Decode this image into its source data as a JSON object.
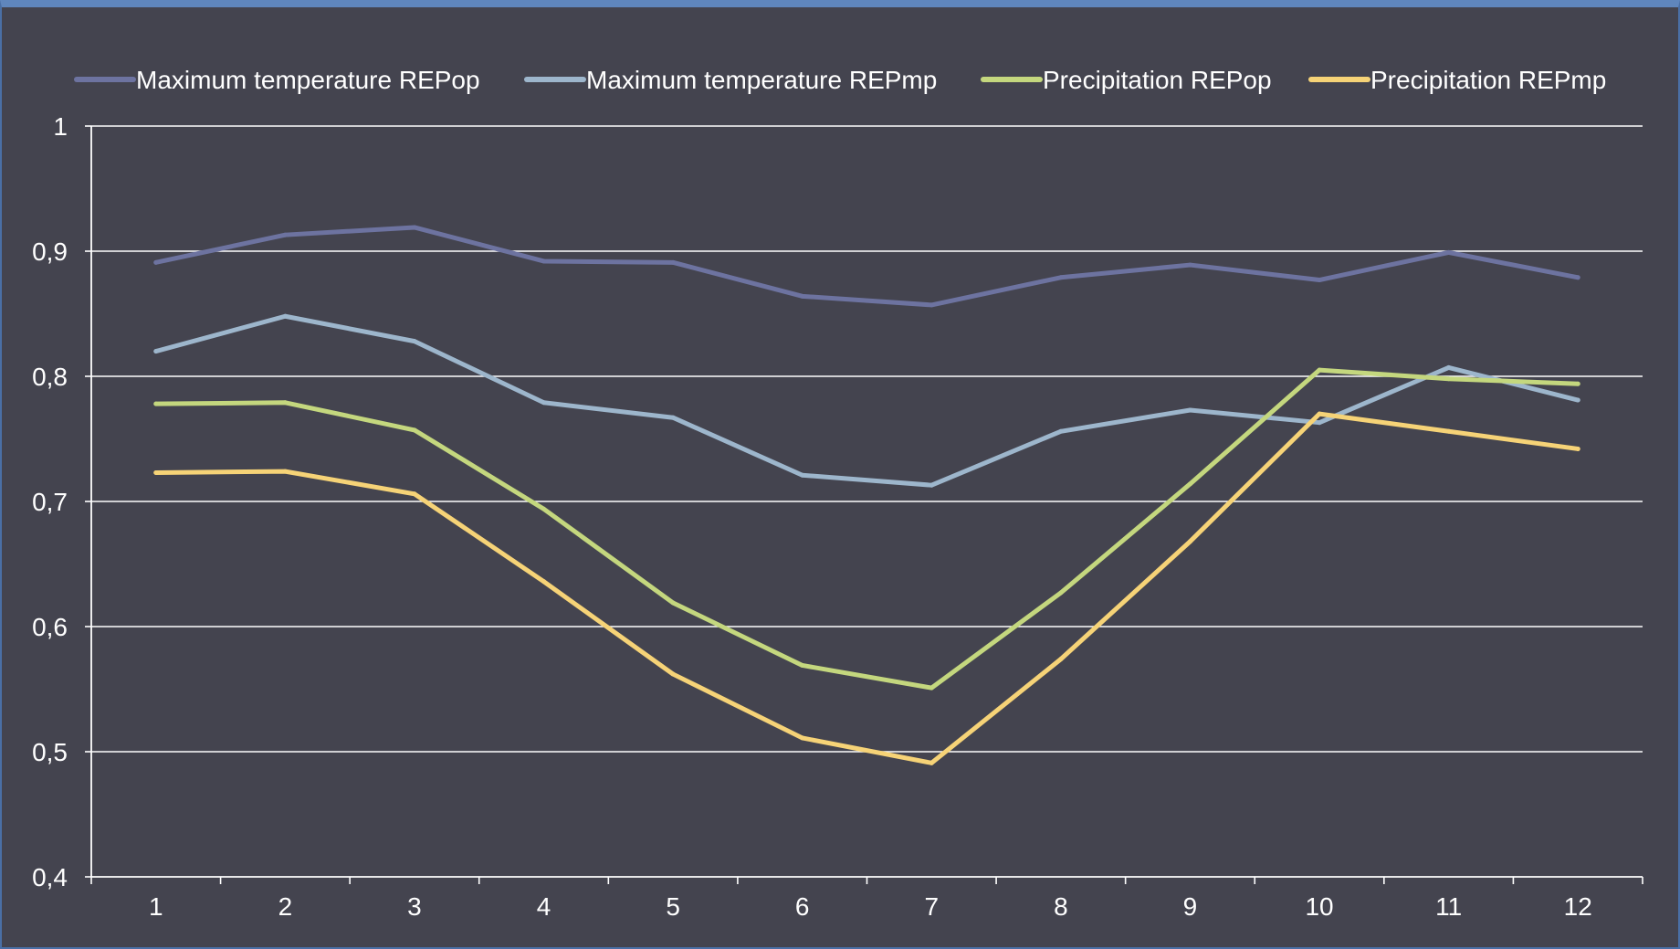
{
  "chart_data": {
    "type": "line",
    "title": "",
    "xlabel": "",
    "ylabel": "",
    "categories": [
      "1",
      "2",
      "3",
      "4",
      "5",
      "6",
      "7",
      "8",
      "9",
      "10",
      "11",
      "12"
    ],
    "ylim": [
      0.4,
      1.0
    ],
    "yticks": [
      "0,4",
      "0,5",
      "0,6",
      "0,7",
      "0,8",
      "0,9",
      "1"
    ],
    "ytick_values": [
      0.4,
      0.5,
      0.6,
      0.7,
      0.8,
      0.9,
      1.0
    ],
    "grid": true,
    "legend_position": "top",
    "series": [
      {
        "name": "Maximum temperature REPop",
        "color": "#6d73a0",
        "values": [
          0.891,
          0.913,
          0.919,
          0.892,
          0.891,
          0.864,
          0.857,
          0.879,
          0.889,
          0.877,
          0.899,
          0.879
        ]
      },
      {
        "name": "Maximum temperature REPmp",
        "color": "#9db6cc",
        "values": [
          0.82,
          0.848,
          0.828,
          0.779,
          0.767,
          0.721,
          0.713,
          0.756,
          0.773,
          0.763,
          0.807,
          0.781
        ]
      },
      {
        "name": "Precipitation REPop",
        "color": "#c4d77e",
        "values": [
          0.778,
          0.779,
          0.757,
          0.694,
          0.619,
          0.569,
          0.551,
          0.627,
          0.714,
          0.805,
          0.798,
          0.794
        ]
      },
      {
        "name": "Precipitation REPmp",
        "color": "#f6d377",
        "values": [
          0.723,
          0.724,
          0.706,
          0.636,
          0.562,
          0.511,
          0.491,
          0.574,
          0.668,
          0.77,
          0.756,
          0.742
        ]
      }
    ]
  },
  "colors": {
    "background": "#44444f",
    "gridline": "#ffffff",
    "axis": "#ffffff",
    "text": "#ffffff"
  }
}
